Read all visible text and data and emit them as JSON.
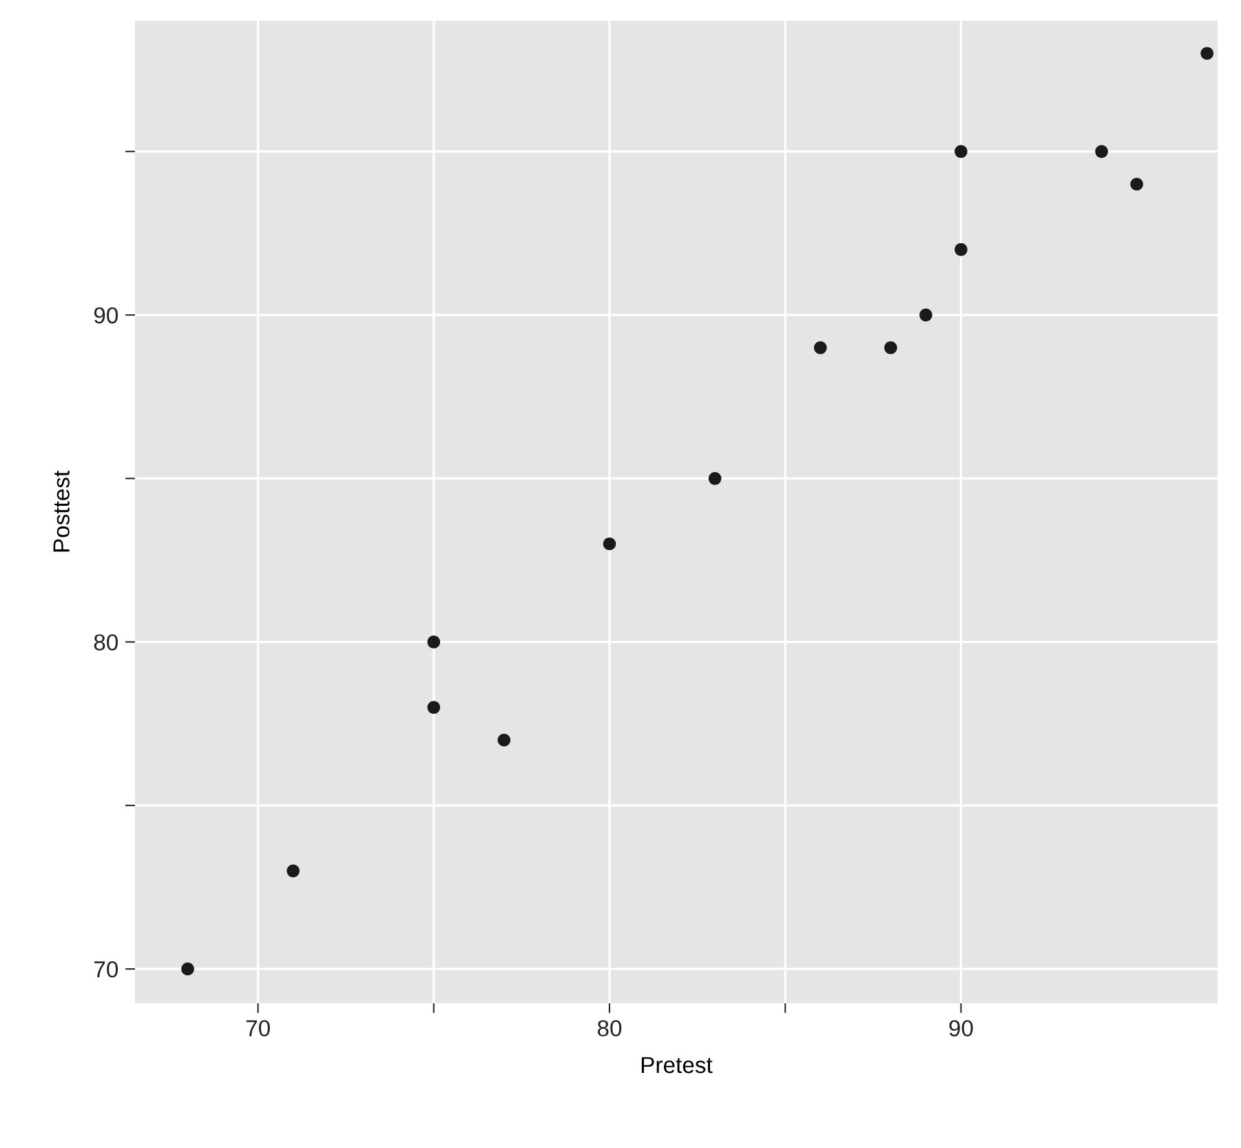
{
  "chart_data": {
    "type": "scatter",
    "xlabel": "Pretest",
    "ylabel": "Posttest",
    "x": [
      68,
      71,
      75,
      75,
      77,
      80,
      83,
      86,
      88,
      89,
      90,
      90,
      94,
      95,
      97
    ],
    "series": [
      {
        "color": "#1a1a1a",
        "values": [
          70,
          73,
          80,
          78,
          77,
          83,
          85,
          89,
          89,
          90,
          92,
          95,
          95,
          94,
          98
        ]
      }
    ],
    "xlim": [
      66.5,
      97.3
    ],
    "ylim": [
      68.95,
      99.0
    ],
    "xticks": [
      70,
      {
        "value": 75,
        "label": null
      },
      80,
      {
        "value": 85,
        "label": null
      },
      90
    ],
    "yticks": [
      70,
      {
        "value": 75,
        "label": null
      },
      80,
      {
        "value": 85,
        "label": null
      },
      90,
      {
        "value": 95,
        "label": null
      }
    ],
    "grid": true,
    "marker": "circle"
  }
}
